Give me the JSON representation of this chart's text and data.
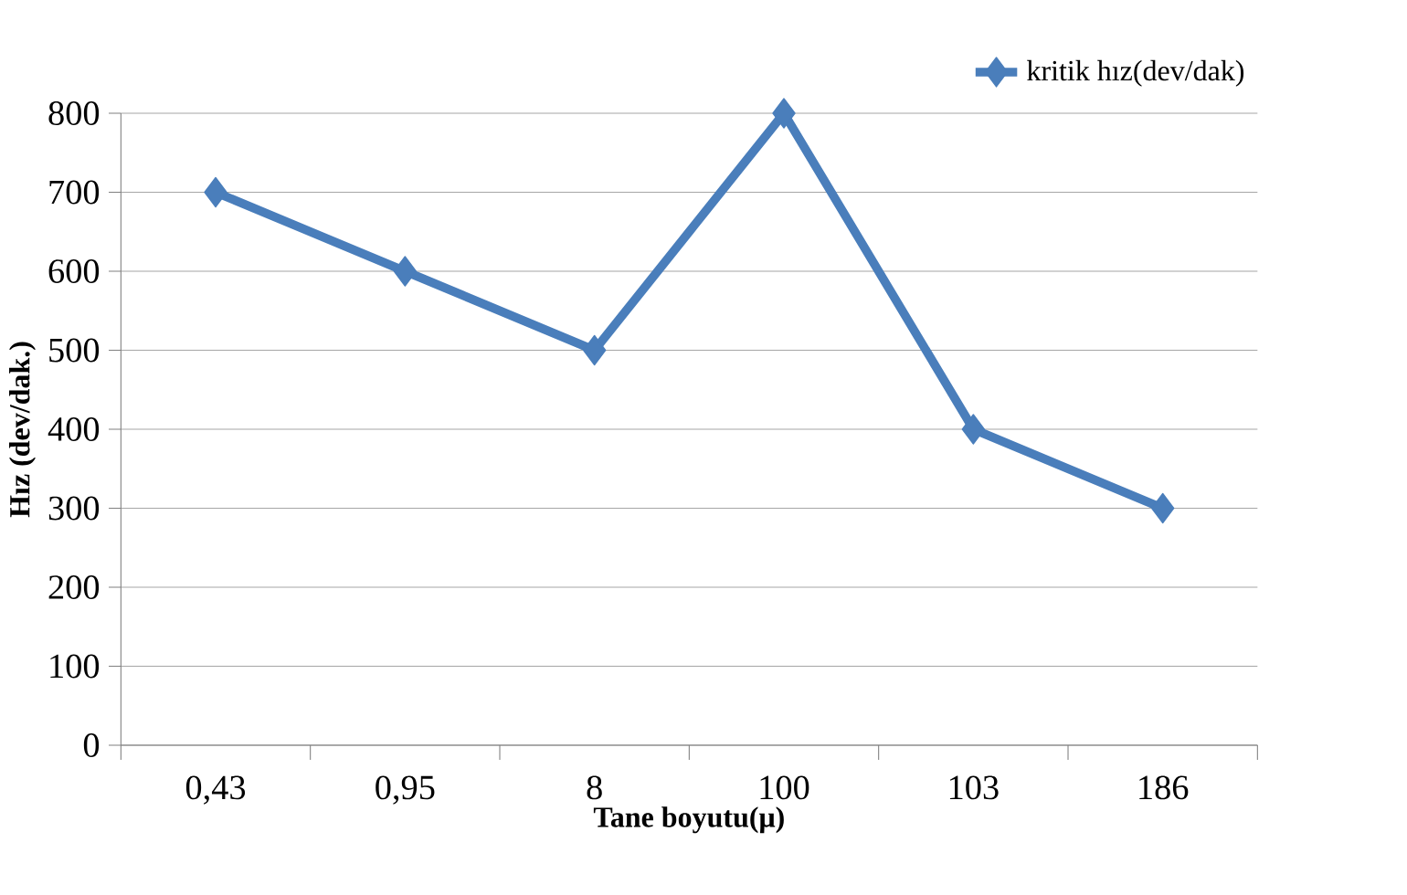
{
  "chart_data": {
    "type": "line",
    "xlabel": "Tane boyutu(μ)",
    "ylabel": "Hız (dev/dak.)",
    "categories": [
      "0,43",
      "0,95",
      "8",
      "100",
      "103",
      "186"
    ],
    "series": [
      {
        "name": "kritik hız(dev/dak)",
        "color": "#4a7ebb",
        "values": [
          700,
          600,
          500,
          800,
          400,
          300
        ]
      }
    ],
    "ylim": [
      0,
      800
    ],
    "yticks": [
      0,
      100,
      200,
      300,
      400,
      500,
      600,
      700,
      800
    ],
    "grid": "y",
    "legend": "top right",
    "marker": "diamond",
    "line_style": "solid"
  }
}
